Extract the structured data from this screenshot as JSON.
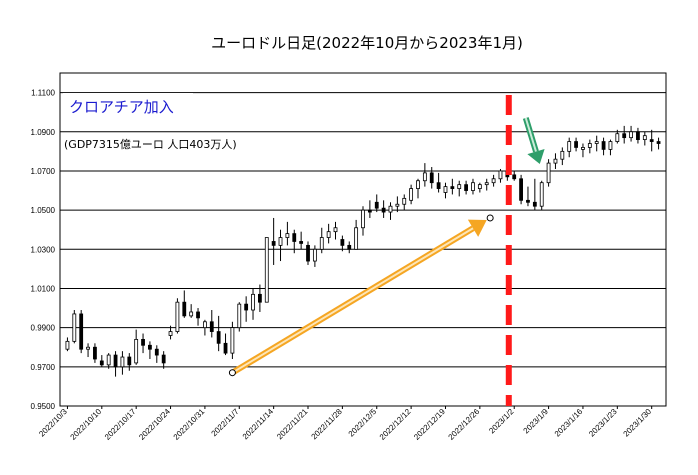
{
  "colors": {
    "candle": "#000000",
    "grid": "#000000",
    "marker_line": "#ff1a1a",
    "orange_arrow": "#f5a623",
    "green_arrow": "#2e9e6a",
    "annotation_blue": "#1b1bcf"
  },
  "chart_data": {
    "type": "candlestick",
    "title": "ユーロドル日足(2022年10月から2023年1月)",
    "xlabel": "",
    "ylabel": "",
    "ylim": [
      0.95,
      1.12
    ],
    "grid": true,
    "y_ticks": [
      "0.9500",
      "0.9700",
      "0.9900",
      "1.0100",
      "1.0300",
      "1.0500",
      "1.0700",
      "1.0900",
      "1.1100"
    ],
    "x_ticks": [
      "2022/10/3",
      "2022/10/10",
      "2022/10/17",
      "2022/10/24",
      "2022/10/31",
      "2022/11/7",
      "2022/11/14",
      "2022/11/21",
      "2022/11/28",
      "2022/12/5",
      "2022/12/12",
      "2022/12/19",
      "2022/12/26",
      "2023/1/2",
      "2023/1/9",
      "2023/1/16",
      "2023/1/23",
      "2023/1/30"
    ],
    "annotations": {
      "event": "クロアチア加入",
      "detail": "(GDP7315億ユーロ  人口403万人)"
    },
    "event_date": "2023/1/2",
    "trend_arrow": {
      "from": [
        "2022/11/7",
        0.967
      ],
      "to": [
        "2022/12/26",
        1.046
      ]
    },
    "down_arrow_date": "2023/1/3",
    "series": [
      {
        "values": [
          [
            0.979,
            0.985,
            0.978,
            0.983
          ],
          [
            0.983,
            0.999,
            0.982,
            0.997
          ],
          [
            0.997,
            0.999,
            0.977,
            0.979
          ],
          [
            0.979,
            0.982,
            0.975,
            0.98
          ],
          [
            0.98,
            0.982,
            0.972,
            0.974
          ],
          [
            0.973,
            0.976,
            0.97,
            0.971
          ],
          [
            0.971,
            0.977,
            0.969,
            0.976
          ],
          [
            0.976,
            0.978,
            0.965,
            0.97
          ],
          [
            0.97,
            0.978,
            0.966,
            0.975
          ],
          [
            0.975,
            0.977,
            0.968,
            0.971
          ],
          [
            0.972,
            0.989,
            0.971,
            0.984
          ],
          [
            0.984,
            0.987,
            0.977,
            0.981
          ],
          [
            0.981,
            0.983,
            0.974,
            0.979
          ],
          [
            0.979,
            0.981,
            0.972,
            0.976
          ],
          [
            0.976,
            0.978,
            0.969,
            0.972
          ],
          [
            0.986,
            0.991,
            0.984,
            0.988
          ],
          [
            0.988,
            1.005,
            0.987,
            1.003
          ],
          [
            1.003,
            1.009,
            0.995,
            0.996
          ],
          [
            0.996,
            1.002,
            0.995,
            0.998
          ],
          [
            0.998,
            1.0,
            0.991,
            0.995
          ],
          [
            0.99,
            0.994,
            0.986,
            0.993
          ],
          [
            0.993,
            0.999,
            0.985,
            0.988
          ],
          [
            0.988,
            0.996,
            0.978,
            0.982
          ],
          [
            0.982,
            0.987,
            0.976,
            0.977
          ],
          [
            0.977,
            0.993,
            0.974,
            0.99
          ],
          [
            0.99,
            1.003,
            0.988,
            1.002
          ],
          [
            1.002,
            1.006,
            0.993,
            0.999
          ],
          [
            0.999,
            1.01,
            0.994,
            1.007
          ],
          [
            1.007,
            1.012,
            0.998,
            1.003
          ],
          [
            1.003,
            1.036,
            1.003,
            1.036
          ],
          [
            1.034,
            1.046,
            1.022,
            1.032
          ],
          [
            1.032,
            1.04,
            1.024,
            1.036
          ],
          [
            1.036,
            1.044,
            1.032,
            1.038
          ],
          [
            1.038,
            1.04,
            1.028,
            1.034
          ],
          [
            1.034,
            1.039,
            1.03,
            1.033
          ],
          [
            1.032,
            1.034,
            1.022,
            1.024
          ],
          [
            1.024,
            1.032,
            1.021,
            1.03
          ],
          [
            1.03,
            1.041,
            1.028,
            1.036
          ],
          [
            1.036,
            1.043,
            1.033,
            1.039
          ],
          [
            1.039,
            1.044,
            1.035,
            1.041
          ],
          [
            1.035,
            1.037,
            1.029,
            1.032
          ],
          [
            1.032,
            1.034,
            1.028,
            1.03
          ],
          [
            1.03,
            1.045,
            1.03,
            1.041
          ],
          [
            1.041,
            1.052,
            1.037,
            1.05
          ],
          [
            1.05,
            1.055,
            1.046,
            1.049
          ],
          [
            1.054,
            1.058,
            1.049,
            1.051
          ],
          [
            1.051,
            1.055,
            1.046,
            1.049
          ],
          [
            1.049,
            1.054,
            1.045,
            1.052
          ],
          [
            1.052,
            1.057,
            1.049,
            1.053
          ],
          [
            1.053,
            1.058,
            1.05,
            1.056
          ],
          [
            1.055,
            1.063,
            1.053,
            1.061
          ],
          [
            1.061,
            1.066,
            1.056,
            1.065
          ],
          [
            1.065,
            1.074,
            1.062,
            1.069
          ],
          [
            1.069,
            1.072,
            1.061,
            1.064
          ],
          [
            1.064,
            1.069,
            1.059,
            1.061
          ],
          [
            1.059,
            1.064,
            1.056,
            1.062
          ],
          [
            1.062,
            1.066,
            1.058,
            1.061
          ],
          [
            1.061,
            1.065,
            1.057,
            1.063
          ],
          [
            1.063,
            1.065,
            1.058,
            1.06
          ],
          [
            1.06,
            1.066,
            1.058,
            1.064
          ],
          [
            1.061,
            1.064,
            1.059,
            1.063
          ],
          [
            1.063,
            1.066,
            1.06,
            1.064
          ],
          [
            1.064,
            1.068,
            1.062,
            1.066
          ],
          [
            1.066,
            1.071,
            1.064,
            1.07
          ],
          [
            1.07,
            1.072,
            1.065,
            1.067
          ],
          [
            1.068,
            1.07,
            1.065,
            1.066
          ],
          [
            1.066,
            1.068,
            1.053,
            1.055
          ],
          [
            1.055,
            1.062,
            1.052,
            1.054
          ],
          [
            1.054,
            1.066,
            1.05,
            1.052
          ],
          [
            1.052,
            1.065,
            1.05,
            1.064
          ],
          [
            1.064,
            1.076,
            1.062,
            1.074
          ],
          [
            1.074,
            1.079,
            1.071,
            1.076
          ],
          [
            1.076,
            1.082,
            1.073,
            1.08
          ],
          [
            1.08,
            1.087,
            1.077,
            1.085
          ],
          [
            1.085,
            1.087,
            1.08,
            1.082
          ],
          [
            1.081,
            1.084,
            1.077,
            1.082
          ],
          [
            1.082,
            1.086,
            1.079,
            1.084
          ],
          [
            1.084,
            1.088,
            1.08,
            1.085
          ],
          [
            1.085,
            1.087,
            1.078,
            1.081
          ],
          [
            1.081,
            1.086,
            1.078,
            1.085
          ],
          [
            1.085,
            1.091,
            1.084,
            1.089
          ],
          [
            1.089,
            1.093,
            1.084,
            1.087
          ],
          [
            1.087,
            1.093,
            1.085,
            1.09
          ],
          [
            1.09,
            1.092,
            1.084,
            1.086
          ],
          [
            1.086,
            1.09,
            1.083,
            1.088
          ],
          [
            1.086,
            1.091,
            1.08,
            1.085
          ],
          [
            1.085,
            1.087,
            1.081,
            1.084
          ]
        ]
      }
    ]
  }
}
